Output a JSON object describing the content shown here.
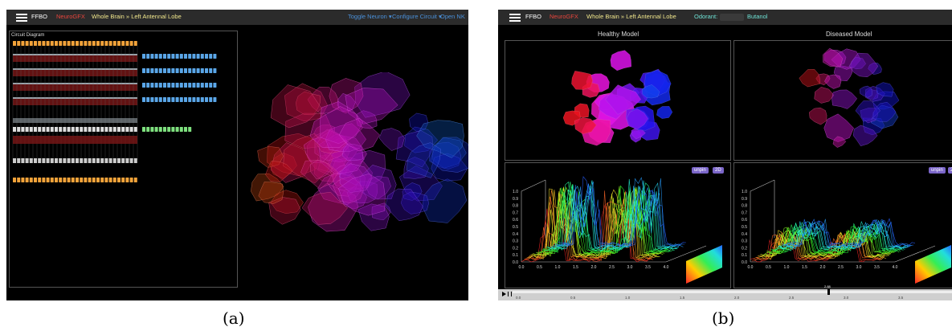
{
  "panel_a": {
    "nav": {
      "brand": "FFBO",
      "app": "NeuroGFX",
      "breadcrumb": "Whole Brain » Left Antennal Lobe",
      "menu_toggle": "Toggle Neuron ▾",
      "menu_configure": "Configure Circuit ▾",
      "menu_open": "Open NK"
    },
    "circuit_title": "Circuit Diagram",
    "caption": "(a)"
  },
  "panel_b": {
    "nav": {
      "brand": "FFBO",
      "app": "NeuroGFX",
      "breadcrumb": "Whole Brain » Left Antennal Lobe",
      "odorant_label": "Odorant:",
      "odorant_value": "Butanol"
    },
    "healthy_title": "Healthy Model",
    "diseased_title": "Diseased Model",
    "btn_unpin": "unpin",
    "btn_2d": "2D",
    "y_ticks": [
      "1.0",
      "0.9",
      "0.8",
      "0.7",
      "0.6",
      "0.5",
      "0.4",
      "0.3",
      "0.2",
      "0.1",
      "0.0"
    ],
    "x_ticks": [
      "0.0",
      "0.5",
      "1.0",
      "1.5",
      "2.0",
      "2.5",
      "3.0",
      "3.5",
      "4.0"
    ],
    "timeline_ticks": [
      "0.0",
      "0.5",
      "1.0",
      "1.5",
      "2.0",
      "2.5",
      "3.0",
      "3.5"
    ],
    "timeline_marker": "2.88",
    "caption": "(b)"
  },
  "colors": {
    "brand_red": "#e8453c",
    "breadcrumb_yellow": "#f0e68c",
    "menu_blue": "#4a90d9",
    "odorant_cyan": "#6fe3d6",
    "button_purple": "#7b66c9"
  }
}
